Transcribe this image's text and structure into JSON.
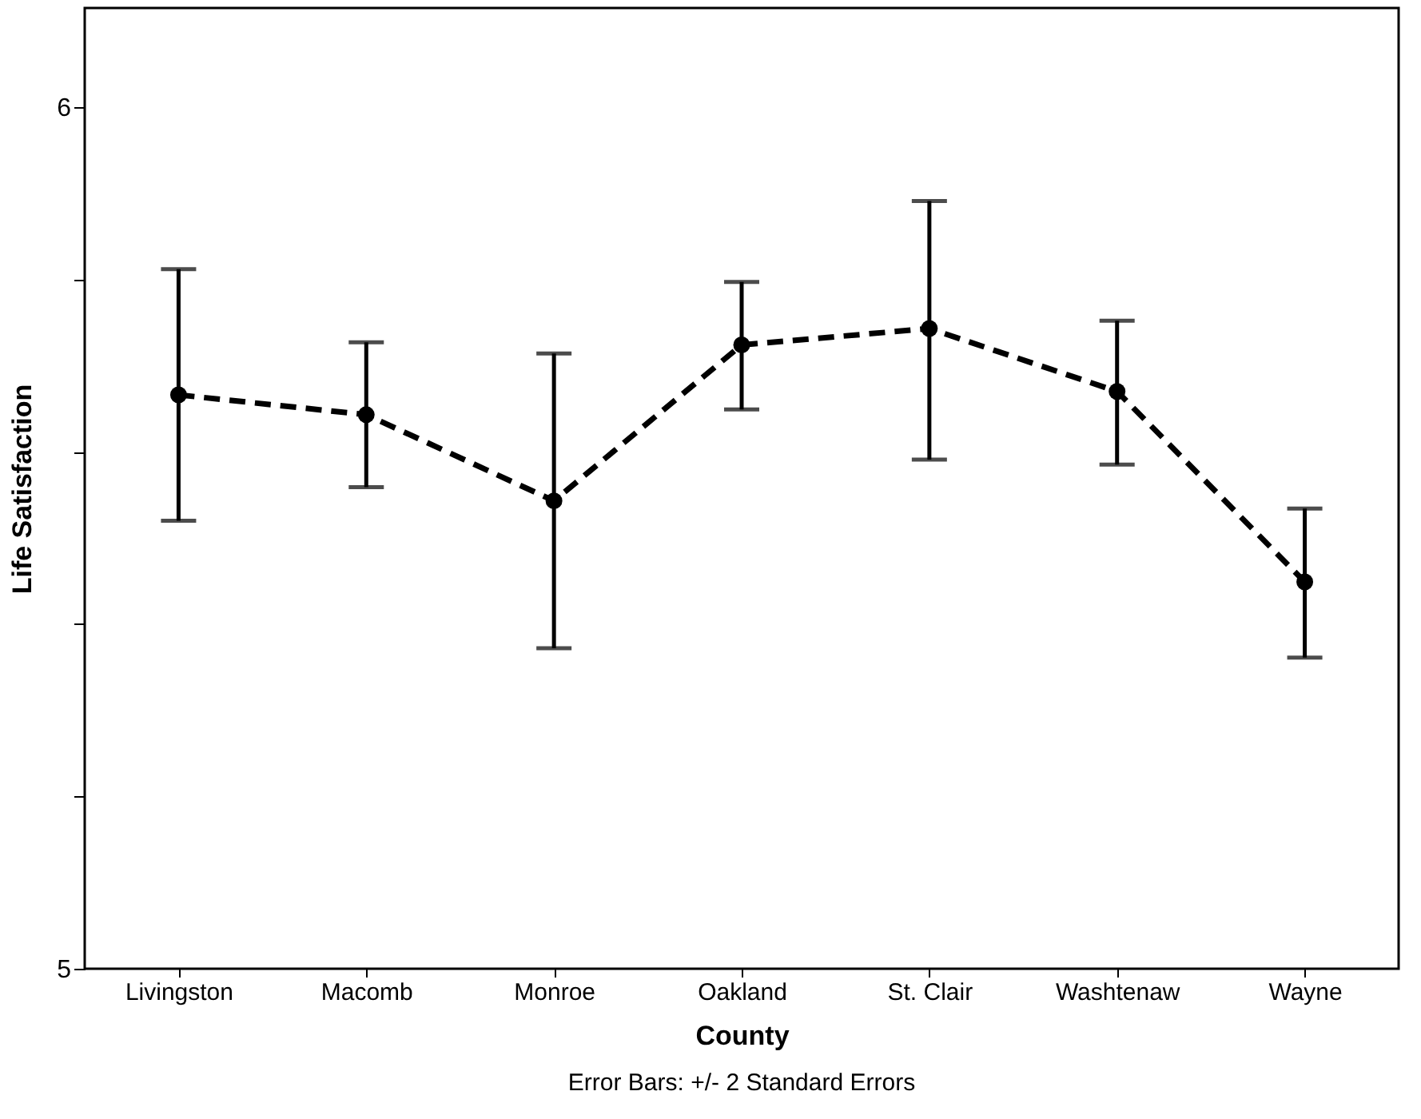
{
  "chart_data": {
    "type": "line",
    "xlabel": "County",
    "ylabel": "Life Satisfaction",
    "categories": [
      "Livingston",
      "Macomb",
      "Monroe",
      "Oakland",
      "St. Clair",
      "Washtenaw",
      "Wayne"
    ],
    "series": [
      {
        "color": "#000000",
        "values": [
          5.666,
          5.643,
          5.543,
          5.724,
          5.743,
          5.67,
          5.449
        ],
        "errors": [
          [
            5.52,
            5.812
          ],
          [
            5.559,
            5.727
          ],
          [
            5.372,
            5.714
          ],
          [
            5.649,
            5.797
          ],
          [
            5.591,
            5.891
          ],
          [
            5.585,
            5.752
          ],
          [
            5.361,
            5.534
          ]
        ]
      }
    ],
    "ylim": [
      5,
      6.115
    ],
    "yticks": [
      5,
      {
        "value": 5.2,
        "label": null
      },
      {
        "value": 5.4,
        "label": null
      },
      {
        "value": 5.6,
        "label": null
      },
      {
        "value": 5.8,
        "label": null
      },
      6
    ],
    "grid": false,
    "marker": "circle",
    "line_style": "dashed",
    "annotations": [
      "Error Bars: +/- 2 Standard Errors"
    ]
  }
}
